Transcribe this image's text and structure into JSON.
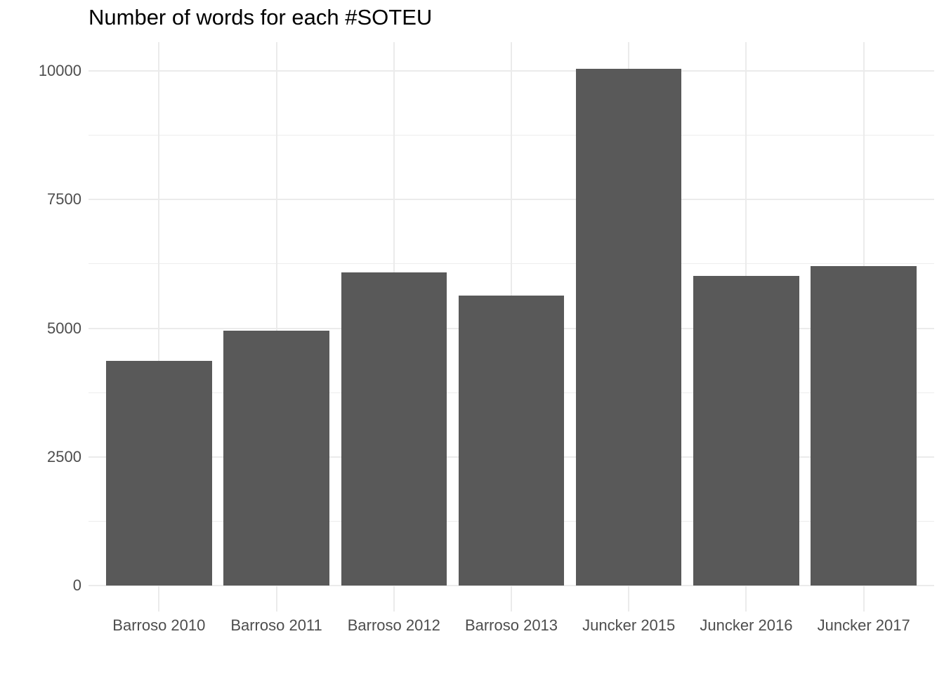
{
  "chart_data": {
    "type": "bar",
    "title": "Number of words for each #SOTEU",
    "xlabel": "",
    "ylabel": "",
    "legend": "none",
    "grid": "major+minor horizontal, major vertical at categories",
    "categories": [
      "Barroso 2010",
      "Barroso 2011",
      "Barroso 2012",
      "Barroso 2013",
      "Juncker 2015",
      "Juncker 2016",
      "Juncker 2017"
    ],
    "values": [
      4370,
      4950,
      6090,
      5640,
      10040,
      6020,
      6210
    ],
    "y_axis": {
      "range": [
        0,
        10000
      ],
      "ticks": [
        0,
        2500,
        5000,
        7500,
        10000
      ],
      "tick_labels": [
        "0",
        "2500",
        "5000",
        "7500",
        "10000"
      ],
      "minor_ticks": [
        1250,
        3750,
        6250,
        8750
      ]
    },
    "colors": {
      "bar": "#595959",
      "gridline": "#EBEBEB",
      "gridline_minor": "#EDEDED",
      "axis_text": "#4D4D4D",
      "title": "#000000",
      "background": "#FFFFFF"
    }
  }
}
